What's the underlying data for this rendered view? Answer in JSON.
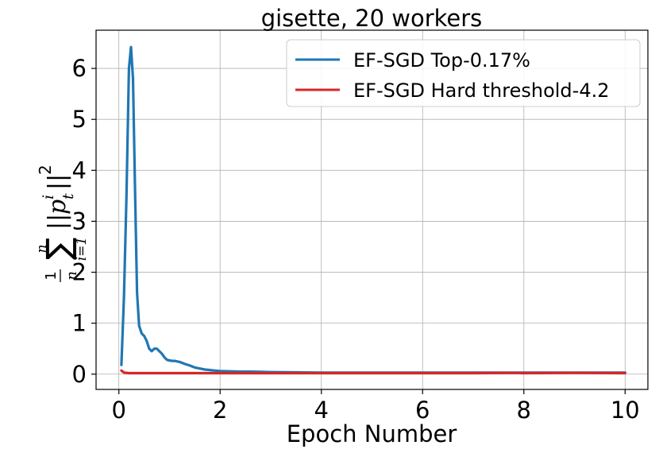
{
  "chart_data": {
    "type": "line",
    "title": "gisette, 20 workers",
    "xlabel": "Epoch Number",
    "ylabel": "1/n Σ_{i=1}^{n} ||p_t^i||^2",
    "xlim": [
      -0.45,
      10.45
    ],
    "ylim": [
      -0.3,
      6.75
    ],
    "xticks": [
      0,
      2,
      4,
      6,
      8,
      10
    ],
    "yticks": [
      0,
      1,
      2,
      3,
      4,
      5,
      6
    ],
    "grid": true,
    "legend_position": "top-right",
    "series": [
      {
        "name": "EF-SGD Top-0.17%",
        "color": "#1f77b4",
        "x": [
          0.05,
          0.1,
          0.15,
          0.2,
          0.24,
          0.28,
          0.32,
          0.36,
          0.4,
          0.45,
          0.5,
          0.55,
          0.6,
          0.65,
          0.7,
          0.75,
          0.8,
          0.85,
          0.9,
          0.95,
          1.0,
          1.05,
          1.1,
          1.2,
          1.3,
          1.4,
          1.5,
          1.6,
          1.7,
          1.8,
          1.9,
          2.0,
          2.2,
          2.4,
          2.6,
          2.8,
          3.0,
          3.5,
          4.0,
          5.0,
          6.0,
          7.0,
          8.0,
          9.0,
          10.0
        ],
        "y": [
          0.18,
          1.5,
          3.5,
          6.0,
          6.42,
          5.8,
          3.6,
          1.6,
          0.95,
          0.8,
          0.75,
          0.65,
          0.5,
          0.45,
          0.5,
          0.5,
          0.45,
          0.4,
          0.33,
          0.28,
          0.27,
          0.26,
          0.26,
          0.24,
          0.2,
          0.17,
          0.13,
          0.11,
          0.09,
          0.08,
          0.07,
          0.06,
          0.055,
          0.05,
          0.05,
          0.045,
          0.04,
          0.035,
          0.03,
          0.03,
          0.03,
          0.03,
          0.03,
          0.03,
          0.03
        ]
      },
      {
        "name": "EF-SGD Hard threshold-4.2",
        "color": "#d62728",
        "x": [
          0.05,
          0.1,
          0.2,
          0.5,
          1.0,
          2.0,
          3.0,
          4.0,
          5.0,
          6.0,
          7.0,
          7.8,
          8.0,
          9.0,
          10.0
        ],
        "y": [
          0.07,
          0.03,
          0.02,
          0.02,
          0.02,
          0.02,
          0.02,
          0.02,
          0.02,
          0.02,
          0.02,
          0.025,
          0.02,
          0.025,
          0.02
        ]
      }
    ]
  }
}
